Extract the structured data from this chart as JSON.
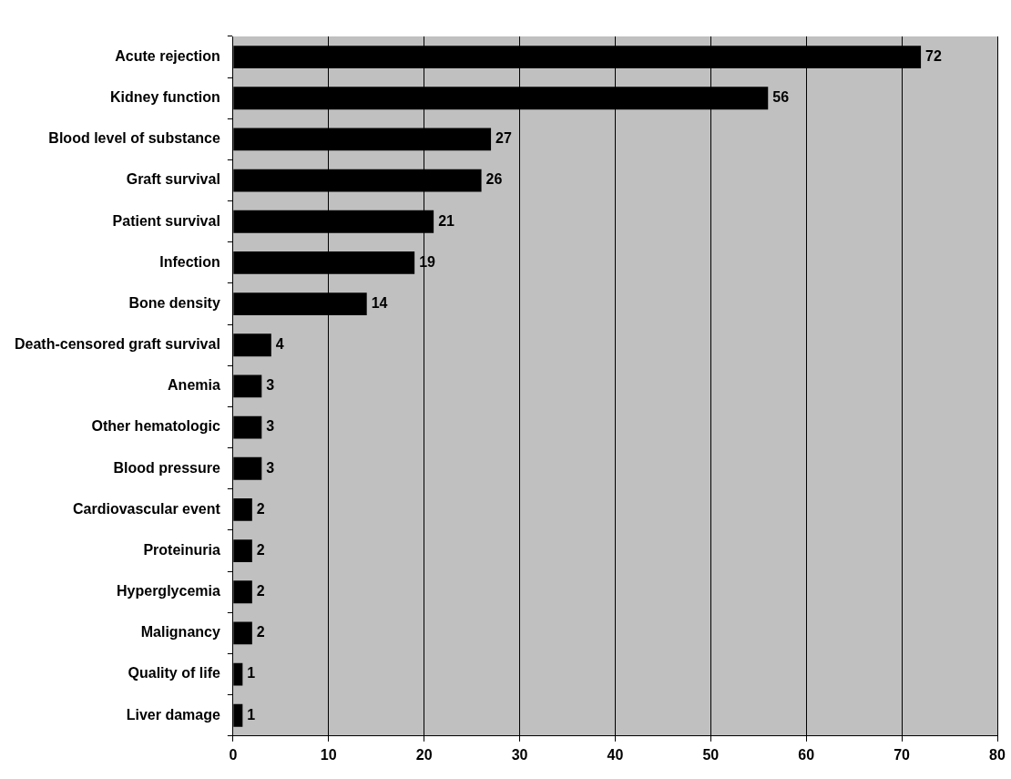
{
  "chart_data": {
    "type": "bar",
    "orientation": "horizontal",
    "categories": [
      "Acute rejection",
      "Kidney function",
      "Blood level of substance",
      "Graft survival",
      "Patient survival",
      "Infection",
      "Bone density",
      "Death-censored graft survival",
      "Anemia",
      "Other hematologic",
      "Blood pressure",
      "Cardiovascular event",
      "Proteinuria",
      "Hyperglycemia",
      "Malignancy",
      "Quality of life",
      "Liver damage"
    ],
    "values": [
      72,
      56,
      27,
      26,
      21,
      19,
      14,
      4,
      3,
      3,
      3,
      2,
      2,
      2,
      2,
      1,
      1
    ],
    "color": "#000000",
    "xlim": [
      0,
      80
    ],
    "xticks": [
      0,
      10,
      20,
      30,
      40,
      50,
      60,
      70,
      80
    ],
    "grid": "x",
    "legend": false,
    "data_labels": true
  }
}
